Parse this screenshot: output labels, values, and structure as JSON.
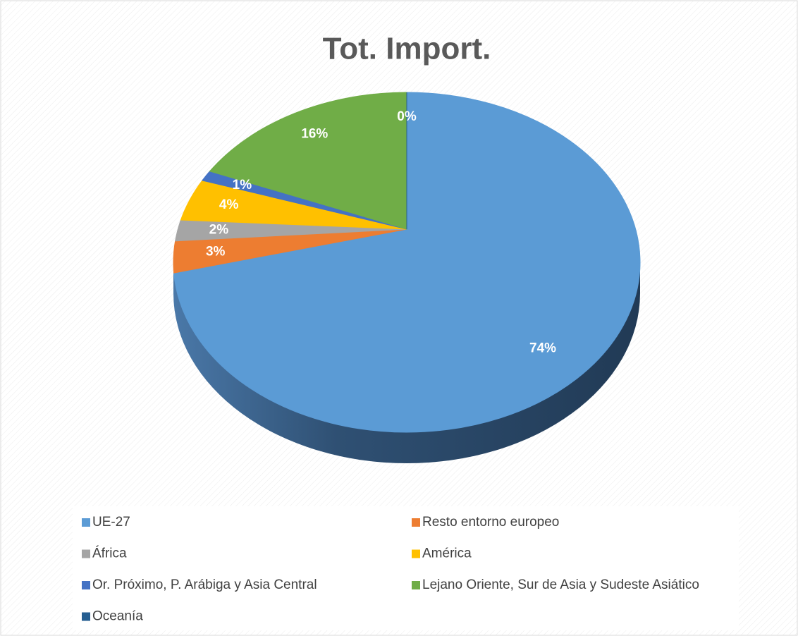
{
  "chart_data": {
    "type": "pie",
    "title": "Tot. Import.",
    "categories": [
      "UE-27",
      "Resto entorno europeo",
      "África",
      "América",
      "Or. Próximo, P. Arábiga y Asia Central",
      "Lejano Oriente, Sur de Asia y Sudeste Asiático",
      "Oceanía"
    ],
    "values": [
      74,
      3,
      2,
      4,
      1,
      16,
      0
    ],
    "value_labels": [
      "74%",
      "3%",
      "2%",
      "4%",
      "1%",
      "16%",
      "0%"
    ],
    "colors": [
      "#5b9bd5",
      "#ed7d31",
      "#a5a5a5",
      "#ffc000",
      "#4472c4",
      "#70ad47",
      "#255e91"
    ],
    "legend": "bottom"
  }
}
